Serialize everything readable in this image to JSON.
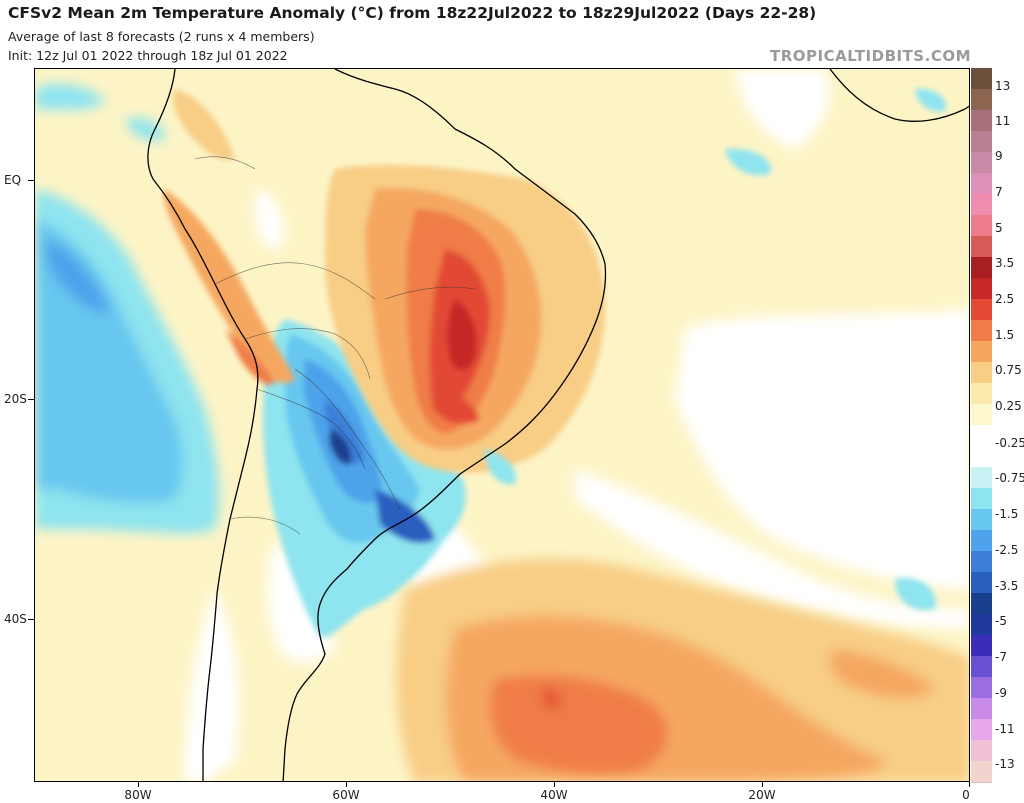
{
  "header": {
    "title": "CFSv2 Mean 2m Temperature Anomaly (°C) from 18z22Jul2022 to 18z29Jul2022 (Days 22-28)",
    "subtitle_line1": "Average of last 8 forecasts (2 runs x 4 members)",
    "subtitle_line2": "Init: 12z Jul 01 2022 through 18z Jul 01 2022",
    "brand": "TROPICALTIDBITS.COM"
  },
  "map": {
    "lat_labels": [
      "EQ",
      "20S",
      "40S"
    ],
    "lon_labels": [
      "80W",
      "60W",
      "40W",
      "20W",
      "0"
    ]
  },
  "colorbar": {
    "labels": [
      "13",
      "11",
      "9",
      "7",
      "5",
      "3.5",
      "2.5",
      "1.5",
      "0.75",
      "0.25",
      "-0.25",
      "-0.75",
      "-1.5",
      "-2.5",
      "-3.5",
      "-5",
      "-7",
      "-9",
      "-11",
      "-13"
    ],
    "colors": [
      "#6b4f3b",
      "#8c6450",
      "#a8707a",
      "#b98092",
      "#c98aa8",
      "#de90b8",
      "#f08cae",
      "#ef7c8c",
      "#d65a55",
      "#a81f22",
      "#c62828",
      "#e24a35",
      "#f07d47",
      "#f5a760",
      "#f8cd86",
      "#fbe9ad",
      "#fdf7cd",
      "#ffffff",
      "#ffffff",
      "#c8f2f3",
      "#8ee4ef",
      "#68c7ef",
      "#4ea3ea",
      "#3b7fd9",
      "#2a5fc0",
      "#1a3f8e",
      "#1f3a9c",
      "#3a2db8",
      "#6a4fd0",
      "#9a6ee0",
      "#c98ae8",
      "#e6a8e8",
      "#efc0d6",
      "#f2d3cf"
    ]
  }
}
